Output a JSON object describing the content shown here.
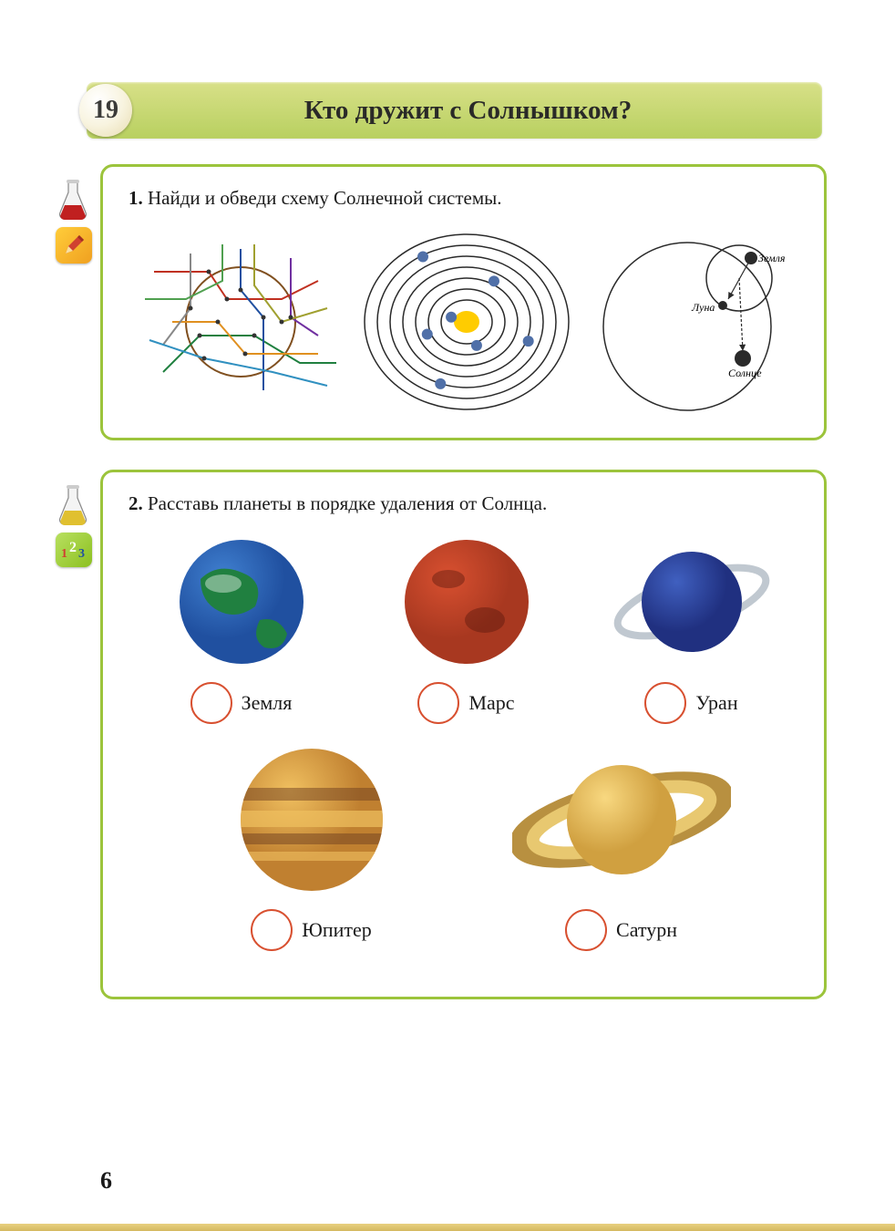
{
  "header": {
    "lesson_number": "19",
    "title": "Кто дружит с Солнышком?"
  },
  "task1": {
    "num": "1.",
    "prompt": "Найди и обведи схему Солнечной системы.",
    "flask_fill": "#c02020",
    "solar": {
      "sun_color": "#ffcc00",
      "orbit_color": "#2a2a2a",
      "planet_color": "#5070a8",
      "orbit_count": 7,
      "planets": [
        {
          "r": 18,
          "a": 200
        },
        {
          "r": 32,
          "a": 70
        },
        {
          "r": 46,
          "a": 160
        },
        {
          "r": 60,
          "a": 300
        },
        {
          "r": 72,
          "a": 20
        },
        {
          "r": 84,
          "a": 110
        },
        {
          "r": 96,
          "a": 240
        }
      ]
    },
    "earth_moon": {
      "orbit_color": "#2a2a2a",
      "labels": {
        "earth": "Земля",
        "moon": "Луна",
        "sun": "Солнце"
      }
    }
  },
  "task2": {
    "num": "2.",
    "prompt": "Расставь планеты в порядке удаления от Солнца.",
    "flask_fill": "#e0c030",
    "answer_circle_border": "#d85030",
    "planets_row1": [
      {
        "name": "Земля",
        "type": "earth"
      },
      {
        "name": "Марс",
        "type": "mars"
      },
      {
        "name": "Уран",
        "type": "uranus"
      }
    ],
    "planets_row2": [
      {
        "name": "Юпитер",
        "type": "jupiter"
      },
      {
        "name": "Сатурн",
        "type": "saturn"
      }
    ],
    "planet_styles": {
      "earth": {
        "base": "#2050a0",
        "light": "#4080d0",
        "land": "#208040"
      },
      "mars": {
        "base": "#a83820",
        "light": "#d85030"
      },
      "uranus": {
        "base": "#203080",
        "light": "#4060c0",
        "ring": "#c0c8d0"
      },
      "jupiter": {
        "base": "#c08030",
        "light": "#f0c060",
        "dark": "#704020"
      },
      "saturn": {
        "base": "#d0a040",
        "light": "#f8d880",
        "ring1": "#e8c870",
        "ring2": "#b89040"
      }
    }
  },
  "page_number": "6"
}
